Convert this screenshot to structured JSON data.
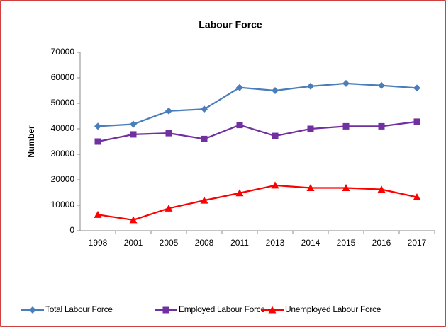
{
  "chart_data": {
    "type": "line",
    "title": "Labour Force",
    "y_label": "Number",
    "categories": [
      "1998",
      "2001",
      "2005",
      "2008",
      "2011",
      "2013",
      "2014",
      "2015",
      "2016",
      "2017"
    ],
    "series": [
      {
        "name": "Total Labour Force",
        "color": "#4a7ebb",
        "marker": "diamond",
        "values": [
          41000,
          41800,
          47000,
          47700,
          56200,
          55000,
          56700,
          57800,
          57000,
          56000
        ]
      },
      {
        "name": "Employed Labour Force",
        "color": "#7030a0",
        "marker": "square",
        "values": [
          35000,
          37800,
          38300,
          36000,
          41500,
          37200,
          40000,
          41000,
          41000,
          42800
        ]
      },
      {
        "name": "Unemployed Labour Force",
        "color": "#ff0000",
        "marker": "triangle",
        "values": [
          6300,
          4200,
          8800,
          11900,
          14800,
          17800,
          16800,
          16800,
          16200,
          13200
        ]
      }
    ],
    "ylim": [
      0,
      70000
    ],
    "yticks": [
      0,
      10000,
      20000,
      30000,
      40000,
      50000,
      60000,
      70000
    ],
    "grid": false,
    "legend": "bottom"
  }
}
